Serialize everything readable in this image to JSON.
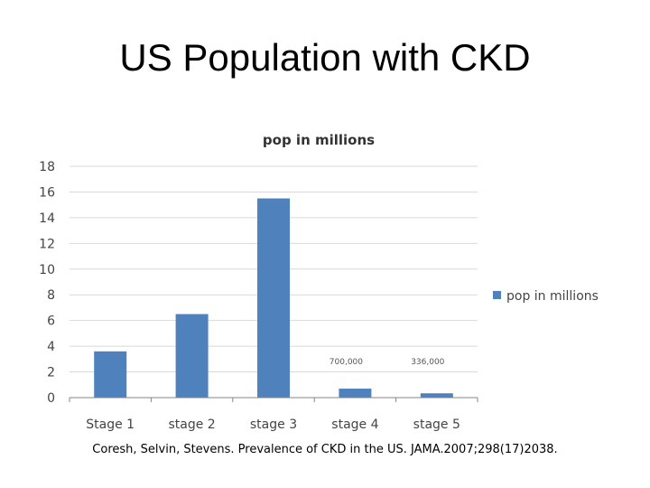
{
  "slide": {
    "title": "US Population with CKD",
    "citation": "Coresh, Selvin, Stevens. Prevalence of CKD in the US. JAMA.2007;298(17)2038."
  },
  "chart_data": {
    "type": "bar",
    "title": "pop in millions",
    "categories": [
      "Stage 1",
      "stage 2",
      "stage 3",
      "stage 4",
      "stage 5"
    ],
    "series": [
      {
        "name": "pop in millions",
        "values": [
          3.6,
          6.5,
          15.5,
          0.7,
          0.336
        ],
        "color": "#4F81BD"
      }
    ],
    "data_labels": [
      "",
      "",
      "",
      "700,000",
      "336,000"
    ],
    "ylim": [
      0,
      18
    ],
    "yticks": [
      0,
      2,
      4,
      6,
      8,
      10,
      12,
      14,
      16,
      18
    ],
    "xlabel": "",
    "ylabel": "",
    "grid": true,
    "legend_position": "right"
  }
}
